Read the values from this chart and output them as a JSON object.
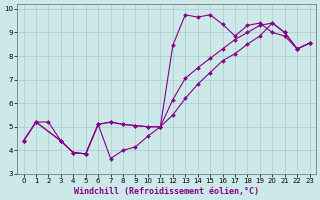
{
  "background_color": "#cce8e8",
  "grid_color": "#aacccc",
  "line_color": "#880088",
  "xlabel": "Windchill (Refroidissement éolien,°C)",
  "xlabel_color": "#880088",
  "xlim": [
    -0.5,
    23.5
  ],
  "ylim": [
    3,
    10.2
  ],
  "yticks": [
    3,
    4,
    5,
    6,
    7,
    8,
    9,
    10
  ],
  "xticks": [
    0,
    1,
    2,
    3,
    4,
    5,
    6,
    7,
    8,
    9,
    10,
    11,
    12,
    13,
    14,
    15,
    16,
    17,
    18,
    19,
    20,
    21,
    22,
    23
  ],
  "line1_x": [
    0,
    1,
    2,
    3,
    4,
    5,
    6,
    7,
    8,
    9,
    10,
    11,
    12,
    13,
    14,
    15,
    16,
    17,
    18,
    19,
    20,
    21,
    22,
    23
  ],
  "line1_y": [
    4.4,
    5.2,
    5.2,
    4.4,
    3.9,
    3.85,
    5.1,
    3.65,
    4.0,
    4.15,
    4.6,
    5.0,
    8.45,
    9.75,
    9.65,
    9.75,
    9.35,
    8.85,
    9.3,
    9.4,
    9.0,
    8.85,
    8.3,
    8.55
  ],
  "line2_x": [
    0,
    1,
    3,
    4,
    5,
    6,
    7,
    8,
    9,
    10,
    11,
    12,
    13,
    14,
    15,
    16,
    17,
    18,
    19,
    20,
    21,
    22,
    23
  ],
  "line2_y": [
    4.4,
    5.2,
    4.4,
    3.9,
    3.85,
    5.1,
    5.2,
    5.1,
    5.05,
    5.0,
    5.0,
    6.15,
    7.05,
    7.5,
    7.9,
    8.3,
    8.7,
    9.0,
    9.3,
    9.4,
    9.0,
    8.3,
    8.55
  ],
  "line3_x": [
    0,
    1,
    3,
    4,
    5,
    6,
    7,
    8,
    9,
    10,
    11,
    12,
    13,
    14,
    15,
    16,
    17,
    18,
    19,
    20,
    21,
    22,
    23
  ],
  "line3_y": [
    4.4,
    5.2,
    4.4,
    3.9,
    3.85,
    5.1,
    5.2,
    5.1,
    5.05,
    5.0,
    5.0,
    5.5,
    6.2,
    6.8,
    7.3,
    7.8,
    8.1,
    8.5,
    8.85,
    9.4,
    9.0,
    8.3,
    8.55
  ],
  "marker": "D",
  "markersize": 2.0,
  "linewidth": 0.8,
  "tick_fontsize": 5.0,
  "xlabel_fontsize": 6.0
}
